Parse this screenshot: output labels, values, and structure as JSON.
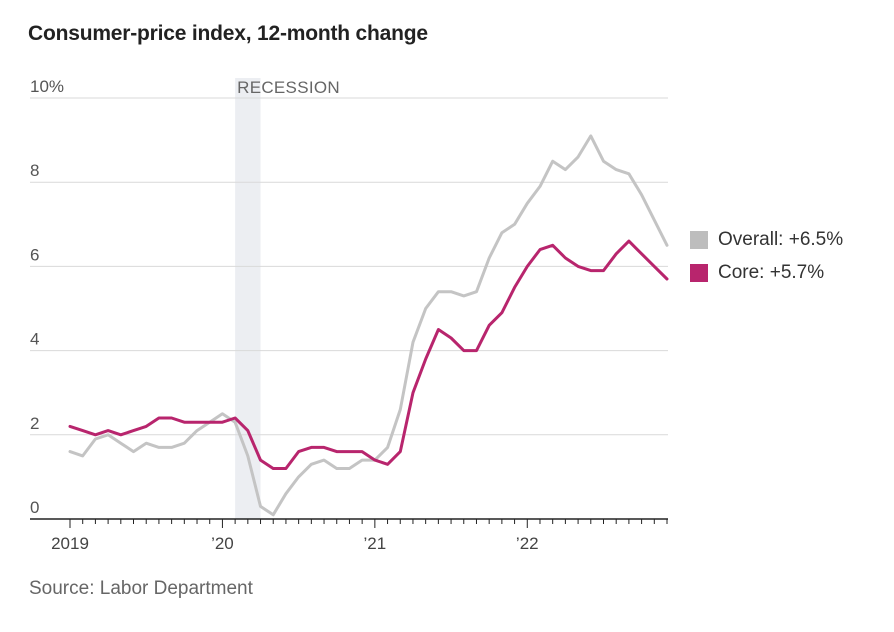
{
  "title": "Consumer-price index, 12-month change",
  "source": "Source: Labor Department",
  "recession_label": "RECESSION",
  "legend": [
    {
      "label": "Overall: +6.5%",
      "color": "#bdbdbd"
    },
    {
      "label": "Core: +5.7%",
      "color": "#b8256d"
    }
  ],
  "chart_data": {
    "type": "line",
    "title": "Consumer-price index, 12-month change",
    "xlabel": "",
    "ylabel": "",
    "ylim": [
      0,
      10
    ],
    "yticks": [
      0,
      2,
      4,
      6,
      8,
      10
    ],
    "ytick_labels": [
      "0",
      "2",
      "4",
      "6",
      "8",
      "10%"
    ],
    "xticks": [
      {
        "label": "2019",
        "x": "2019-01"
      },
      {
        "label": "’20",
        "x": "2020-01"
      },
      {
        "label": "’21",
        "x": "2021-01"
      },
      {
        "label": "’22",
        "x": "2022-01"
      }
    ],
    "recession": {
      "start": "2020-02",
      "end": "2020-04"
    },
    "grid": true,
    "legend_position": "right",
    "x": [
      "2019-01",
      "2019-02",
      "2019-03",
      "2019-04",
      "2019-05",
      "2019-06",
      "2019-07",
      "2019-08",
      "2019-09",
      "2019-10",
      "2019-11",
      "2019-12",
      "2020-01",
      "2020-02",
      "2020-03",
      "2020-04",
      "2020-05",
      "2020-06",
      "2020-07",
      "2020-08",
      "2020-09",
      "2020-10",
      "2020-11",
      "2020-12",
      "2021-01",
      "2021-02",
      "2021-03",
      "2021-04",
      "2021-05",
      "2021-06",
      "2021-07",
      "2021-08",
      "2021-09",
      "2021-10",
      "2021-11",
      "2021-12",
      "2022-01",
      "2022-02",
      "2022-03",
      "2022-04",
      "2022-05",
      "2022-06",
      "2022-07",
      "2022-08",
      "2022-09",
      "2022-10",
      "2022-11",
      "2022-12"
    ],
    "series": [
      {
        "name": "Overall: +6.5%",
        "color": "#c4c4c4",
        "values": [
          1.6,
          1.5,
          1.9,
          2.0,
          1.8,
          1.6,
          1.8,
          1.7,
          1.7,
          1.8,
          2.1,
          2.3,
          2.5,
          2.3,
          1.5,
          0.3,
          0.1,
          0.6,
          1.0,
          1.3,
          1.4,
          1.2,
          1.2,
          1.4,
          1.4,
          1.7,
          2.6,
          4.2,
          5.0,
          5.4,
          5.4,
          5.3,
          5.4,
          6.2,
          6.8,
          7.0,
          7.5,
          7.9,
          8.5,
          8.3,
          8.6,
          9.1,
          8.5,
          8.3,
          8.2,
          7.7,
          7.1,
          6.5
        ]
      },
      {
        "name": "Core: +5.7%",
        "color": "#b8256d",
        "values": [
          2.2,
          2.1,
          2.0,
          2.1,
          2.0,
          2.1,
          2.2,
          2.4,
          2.4,
          2.3,
          2.3,
          2.3,
          2.3,
          2.4,
          2.1,
          1.4,
          1.2,
          1.2,
          1.6,
          1.7,
          1.7,
          1.6,
          1.6,
          1.6,
          1.4,
          1.3,
          1.6,
          3.0,
          3.8,
          4.5,
          4.3,
          4.0,
          4.0,
          4.6,
          4.9,
          5.5,
          6.0,
          6.4,
          6.5,
          6.2,
          6.0,
          5.9,
          5.9,
          6.3,
          6.6,
          6.3,
          6.0,
          5.7
        ]
      }
    ]
  }
}
